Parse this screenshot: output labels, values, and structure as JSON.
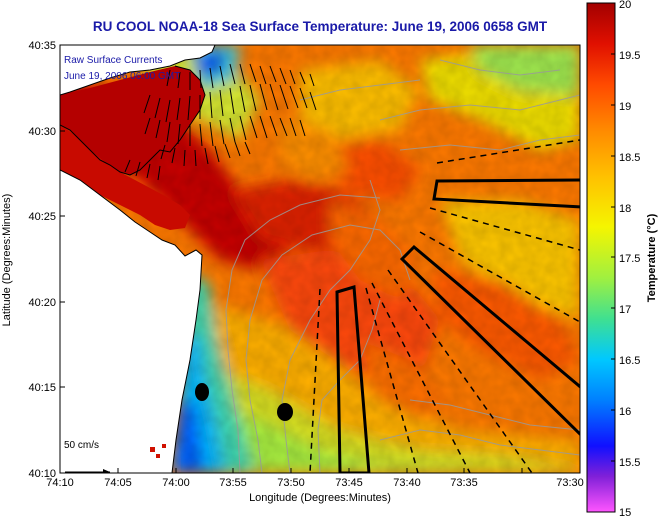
{
  "title": "RU COOL  NOAA-18  Sea Surface Temperature:  June 19, 2006 0658 GMT",
  "map": {
    "x_label": "Longitude (Degrees:Minutes)",
    "y_label": "Latitude (Degrees:Minutes)",
    "x_ticks": [
      "74:10",
      "74:05",
      "74:00",
      "73:55",
      "73:50",
      "73:45",
      "73:40",
      "73:35",
      "73:30"
    ],
    "y_ticks": [
      "40:35",
      "40:30",
      "40:25",
      "40:20",
      "40:15",
      "40:10"
    ],
    "overlay_label_1": "Raw Surface Currents",
    "overlay_label_2": "June 19, 2006 06:00 GMT",
    "scale_label": "50 cm/s",
    "land_color": "#ffffff",
    "coastline_color": "#000000",
    "contour_color": "#9a9a9a"
  },
  "colorbar": {
    "label": "Temperature (°C)",
    "ticks": [
      "20",
      "19.5",
      "19",
      "18.5",
      "18",
      "17.5",
      "17",
      "16.5",
      "16",
      "15.5",
      "15"
    ],
    "min": 15,
    "max": 20,
    "colors": [
      "#ff55ff",
      "#7a1fd0",
      "#0000ff",
      "#007fff",
      "#00c8ff",
      "#38e0a0",
      "#9aef40",
      "#f5f500",
      "#ffc000",
      "#ff8a00",
      "#ff4a00",
      "#e11000",
      "#a30000"
    ]
  }
}
